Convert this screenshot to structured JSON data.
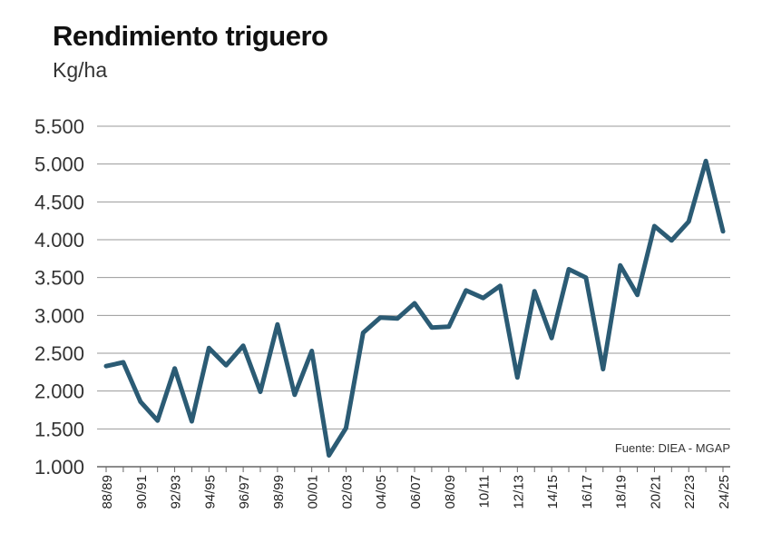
{
  "chart_data": {
    "type": "line",
    "title": "Rendimiento triguero",
    "ylabel": "Kg/ha",
    "xlabel": "",
    "ylim": [
      1000,
      5500
    ],
    "y_ticks": [
      1000,
      1500,
      2000,
      2500,
      3000,
      3500,
      4000,
      4500,
      5000,
      5500
    ],
    "y_tick_labels": [
      "1.000",
      "1.500",
      "2.000",
      "2.500",
      "3.000",
      "3.500",
      "4.000",
      "4.500",
      "5.000",
      "5.500"
    ],
    "grid": true,
    "legend": "none",
    "line_color": "#2b5b74",
    "annotation": "Fuente: DIEA - MGAP",
    "categories": [
      "88/89",
      "89/90",
      "90/91",
      "91/92",
      "92/93",
      "93/94",
      "94/95",
      "95/96",
      "96/97",
      "97/98",
      "98/99",
      "99/00",
      "00/01",
      "01/02",
      "02/03",
      "03/04",
      "04/05",
      "05/06",
      "06/07",
      "07/08",
      "08/09",
      "09/10",
      "10/11",
      "11/12",
      "12/13",
      "13/14",
      "14/15",
      "15/16",
      "16/17",
      "17/18",
      "18/19",
      "19/20",
      "20/21",
      "21/22",
      "22/23",
      "23/24",
      "24/25"
    ],
    "x_tick_labels": [
      "88/89",
      "90/91",
      "92/93",
      "94/95",
      "96/97",
      "98/99",
      "00/01",
      "02/03",
      "04/05",
      "06/07",
      "08/09",
      "10/11",
      "12/13",
      "14/15",
      "16/17",
      "18/19",
      "20/21",
      "22/23",
      "24/25"
    ],
    "series": [
      {
        "values": [
          2330,
          2380,
          1860,
          1610,
          2300,
          1600,
          2570,
          2340,
          2600,
          1990,
          2880,
          1950,
          2530,
          1150,
          1510,
          2770,
          2970,
          2960,
          3160,
          2840,
          2850,
          3330,
          3230,
          3390,
          2180,
          3320,
          2700,
          3610,
          3500,
          2290,
          3660,
          3270,
          4180,
          3990,
          4240,
          5040,
          4110
        ]
      }
    ]
  }
}
